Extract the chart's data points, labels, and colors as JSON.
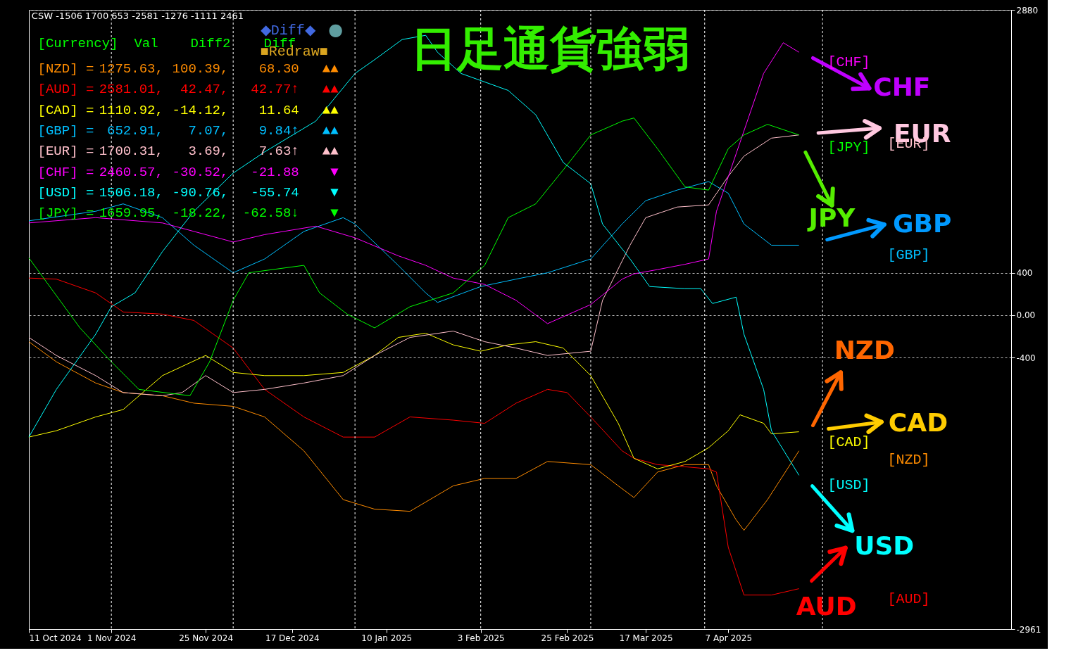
{
  "chart_data": {
    "type": "line",
    "title": "日足通貨強弱",
    "annotations": [
      "CSW -1506 1700 653 -2581 -1276 -1111 2461",
      "[Currency] Val Diff2 Diff",
      "[NZD] = 1275.63, 100.39, 68.30 ▲▲",
      "[AUD] = 2581.01, 42.47, 42.77↑ ▲▲",
      "[CAD] = 1110.92, -14.12, 11.64 ▲▲",
      "[GBP] = 652.91, 7.07, 9.84↑ ▲▲",
      "[EUR] = 1700.31, 3.69, 7.63↑ ▲▲",
      "[CHF] = 2460.57, -30.52, -21.88 ▼",
      "[USD] = 1506.18, -90.76, -55.74 ▼",
      "[JPY] = 1659.95, -18.22, -62.58↓ ▼",
      "◆Diff◆",
      "●",
      "■Redraw■",
      "CHF",
      "EUR",
      "JPY",
      "GBP",
      "NZD",
      "CAD",
      "USD",
      "AUD"
    ],
    "xlim": [
      "2024-10-11",
      "2025-06-18"
    ],
    "xticks": [
      {
        "value": "2024-10-11",
        "label": "11 Oct 2024"
      },
      {
        "value": "2024-11-01",
        "label": "1 Nov 2024"
      },
      {
        "value": "2024-11-25",
        "label": "25 Nov 2024"
      },
      {
        "value": "2024-12-17",
        "label": "17 Dec 2024"
      },
      {
        "value": "2025-01-10",
        "label": "10 Jan 2025"
      },
      {
        "value": "2025-02-03",
        "label": "3 Feb 2025"
      },
      {
        "value": "2025-02-25",
        "label": "25 Feb 2025"
      },
      {
        "value": "2025-03-17",
        "label": "17 Mar 2025"
      },
      {
        "value": "2025-04-07",
        "label": "7 Apr 2025"
      }
    ],
    "ylim": [
      -2961,
      2880
    ],
    "yticks": [
      -2961,
      -400,
      {
        "value": 0,
        "label": "0.00"
      },
      400,
      2880
    ],
    "grid": "y",
    "ref_lines": [
      {
        "axis": "x",
        "value": "2024-11-01",
        "color": "#ffffff",
        "line_style": "dashed"
      },
      {
        "axis": "x",
        "value": "2024-12-02",
        "color": "#ffffff",
        "line_style": "dashed"
      },
      {
        "axis": "x",
        "value": "2025-01-02",
        "color": "#ffffff",
        "line_style": "dashed"
      },
      {
        "axis": "x",
        "value": "2025-02-03",
        "color": "#ffffff",
        "line_style": "dashed"
      },
      {
        "axis": "x",
        "value": "2025-03-03",
        "color": "#ffffff",
        "line_style": "dashed"
      },
      {
        "axis": "x",
        "value": "2025-04-01",
        "color": "#ffffff",
        "line_style": "dashed"
      },
      {
        "axis": "x",
        "value": "2025-05-01",
        "color": "#ffffff",
        "line_style": "dashed"
      }
    ],
    "series": [
      {
        "name": "[NZD]",
        "color": "#ff8c00",
        "x": [
          "2024-10-11",
          "2024-10-18",
          "2024-10-28",
          "2024-11-04",
          "2024-11-14",
          "2024-11-22",
          "2024-12-02",
          "2024-12-10",
          "2024-12-20",
          "2024-12-30",
          "2025-01-07",
          "2025-01-16",
          "2025-01-27",
          "2025-02-04",
          "2025-02-12",
          "2025-02-20",
          "2025-03-03",
          "2025-03-10",
          "2025-03-14",
          "2025-03-20",
          "2025-03-27",
          "2025-04-02",
          "2025-04-04",
          "2025-04-09",
          "2025-04-11",
          "2025-04-17",
          "2025-04-25"
        ],
        "values": [
          -250,
          -440,
          -640,
          -730,
          -760,
          -830,
          -860,
          -960,
          -1280,
          -1740,
          -1830,
          -1850,
          -1610,
          -1540,
          -1540,
          -1380,
          -1410,
          -1610,
          -1720,
          -1480,
          -1410,
          -1410,
          -1610,
          -1930,
          -2030,
          -1740,
          -1280
        ]
      },
      {
        "name": "[AUD]",
        "color": "#ff0000",
        "x": [
          "2024-10-11",
          "2024-10-18",
          "2024-10-28",
          "2024-11-04",
          "2024-11-14",
          "2024-11-22",
          "2024-12-02",
          "2024-12-10",
          "2024-12-20",
          "2024-12-30",
          "2025-01-07",
          "2025-01-16",
          "2025-01-27",
          "2025-02-04",
          "2025-02-12",
          "2025-02-20",
          "2025-02-25",
          "2025-03-03",
          "2025-03-11",
          "2025-03-14",
          "2025-03-20",
          "2025-03-27",
          "2025-04-02",
          "2025-04-04",
          "2025-04-07",
          "2025-04-11",
          "2025-04-18",
          "2025-04-25"
        ],
        "values": [
          350,
          340,
          210,
          30,
          10,
          -50,
          -310,
          -700,
          -960,
          -1150,
          -1150,
          -960,
          -990,
          -1020,
          -830,
          -700,
          -730,
          -960,
          -1280,
          -1350,
          -1410,
          -1430,
          -1450,
          -1480,
          -2190,
          -2640,
          -2640,
          -2580
        ]
      },
      {
        "name": "[CAD]",
        "color": "#ffff00",
        "x": [
          "2024-10-11",
          "2024-10-18",
          "2024-10-28",
          "2024-11-04",
          "2024-11-14",
          "2024-11-25",
          "2024-12-02",
          "2024-12-10",
          "2024-12-20",
          "2024-12-30",
          "2025-01-07",
          "2025-01-13",
          "2025-01-20",
          "2025-01-27",
          "2025-02-03",
          "2025-02-10",
          "2025-02-17",
          "2025-02-24",
          "2025-03-03",
          "2025-03-10",
          "2025-03-14",
          "2025-03-20",
          "2025-03-27",
          "2025-04-02",
          "2025-04-07",
          "2025-04-10",
          "2025-04-16",
          "2025-04-18",
          "2025-04-25"
        ],
        "values": [
          -1150,
          -1090,
          -960,
          -890,
          -570,
          -380,
          -540,
          -570,
          -570,
          -540,
          -380,
          -210,
          -170,
          -280,
          -340,
          -280,
          -250,
          -310,
          -570,
          -1020,
          -1350,
          -1450,
          -1380,
          -1250,
          -1090,
          -940,
          -1020,
          -1120,
          -1100
        ]
      },
      {
        "name": "[GBP]",
        "color": "#00bfff",
        "x": [
          "2024-10-11",
          "2024-10-28",
          "2024-11-04",
          "2024-11-14",
          "2024-11-22",
          "2024-12-02",
          "2024-12-10",
          "2024-12-20",
          "2024-12-30",
          "2025-01-02",
          "2025-01-13",
          "2025-01-20",
          "2025-01-23",
          "2025-02-03",
          "2025-02-12",
          "2025-02-20",
          "2025-03-03",
          "2025-03-11",
          "2025-03-17",
          "2025-03-25",
          "2025-04-02",
          "2025-04-07",
          "2025-04-11",
          "2025-04-18",
          "2025-04-25"
        ],
        "values": [
          890,
          980,
          1050,
          920,
          660,
          400,
          530,
          790,
          920,
          860,
          470,
          210,
          120,
          270,
          340,
          400,
          530,
          860,
          1080,
          1180,
          1260,
          1150,
          860,
          660,
          660
        ]
      },
      {
        "name": "[EUR]",
        "color": "#ffc0cb",
        "x": [
          "2024-10-11",
          "2024-10-18",
          "2024-10-28",
          "2024-11-04",
          "2024-11-14",
          "2024-11-19",
          "2024-11-25",
          "2024-12-02",
          "2024-12-10",
          "2024-12-20",
          "2024-12-30",
          "2025-01-07",
          "2025-01-16",
          "2025-01-27",
          "2025-02-04",
          "2025-02-12",
          "2025-02-20",
          "2025-03-03",
          "2025-03-06",
          "2025-03-13",
          "2025-03-17",
          "2025-03-25",
          "2025-04-02",
          "2025-04-07",
          "2025-04-11",
          "2025-04-18",
          "2025-04-25"
        ],
        "values": [
          -210,
          -380,
          -570,
          -730,
          -760,
          -730,
          -570,
          -730,
          -700,
          -640,
          -570,
          -380,
          -210,
          -150,
          -250,
          -310,
          -380,
          -340,
          140,
          660,
          920,
          1020,
          1040,
          1310,
          1500,
          1670,
          1700
        ]
      },
      {
        "name": "[CHF]",
        "color": "#ff00ff",
        "x": [
          "2024-10-11",
          "2024-10-28",
          "2024-11-14",
          "2024-11-22",
          "2024-12-02",
          "2024-12-10",
          "2024-12-23",
          "2025-01-02",
          "2025-01-13",
          "2025-01-20",
          "2025-01-27",
          "2025-02-04",
          "2025-02-12",
          "2025-02-20",
          "2025-03-03",
          "2025-03-11",
          "2025-03-14",
          "2025-03-20",
          "2025-03-27",
          "2025-04-02",
          "2025-04-04",
          "2025-04-10",
          "2025-04-16",
          "2025-04-21",
          "2025-04-25"
        ],
        "values": [
          870,
          920,
          870,
          790,
          690,
          760,
          840,
          730,
          560,
          470,
          350,
          290,
          140,
          -80,
          100,
          340,
          390,
          430,
          480,
          530,
          980,
          1630,
          2280,
          2570,
          2480
        ]
      },
      {
        "name": "[USD]",
        "color": "#00ffff",
        "x": [
          "2024-10-11",
          "2024-10-18",
          "2024-10-28",
          "2024-11-01",
          "2024-11-07",
          "2024-11-14",
          "2024-11-22",
          "2024-12-02",
          "2024-12-10",
          "2024-12-23",
          "2025-01-02",
          "2025-01-07",
          "2025-01-14",
          "2025-01-20",
          "2025-01-23",
          "2025-01-29",
          "2025-02-10",
          "2025-02-17",
          "2025-02-24",
          "2025-03-03",
          "2025-03-06",
          "2025-03-13",
          "2025-03-18",
          "2025-03-27",
          "2025-03-31",
          "2025-04-03",
          "2025-04-09",
          "2025-04-11",
          "2025-04-16",
          "2025-04-18",
          "2025-04-25"
        ],
        "values": [
          -1150,
          -700,
          -180,
          80,
          210,
          600,
          980,
          1340,
          1540,
          1830,
          2280,
          2410,
          2600,
          2640,
          2480,
          2280,
          2120,
          1890,
          1440,
          1240,
          860,
          530,
          270,
          250,
          250,
          110,
          170,
          -180,
          -700,
          -1090,
          -1510
        ]
      },
      {
        "name": "[JPY]",
        "color": "#00ff00",
        "x": [
          "2024-10-11",
          "2024-10-24",
          "2024-11-01",
          "2024-11-08",
          "2024-11-21",
          "2024-11-26",
          "2024-12-02",
          "2024-12-06",
          "2024-12-20",
          "2024-12-24",
          "2024-12-31",
          "2025-01-07",
          "2025-01-16",
          "2025-01-27",
          "2025-02-04",
          "2025-02-10",
          "2025-02-17",
          "2025-02-24",
          "2025-03-03",
          "2025-03-11",
          "2025-03-14",
          "2025-03-20",
          "2025-03-27",
          "2025-04-02",
          "2025-04-07",
          "2025-04-11",
          "2025-04-17",
          "2025-04-25"
        ],
        "values": [
          540,
          -120,
          -440,
          -700,
          -760,
          -440,
          140,
          400,
          470,
          210,
          10,
          -120,
          80,
          210,
          470,
          920,
          1050,
          1370,
          1700,
          1830,
          1860,
          1570,
          1210,
          1180,
          1570,
          1700,
          1800,
          1700
        ]
      }
    ]
  }
}
